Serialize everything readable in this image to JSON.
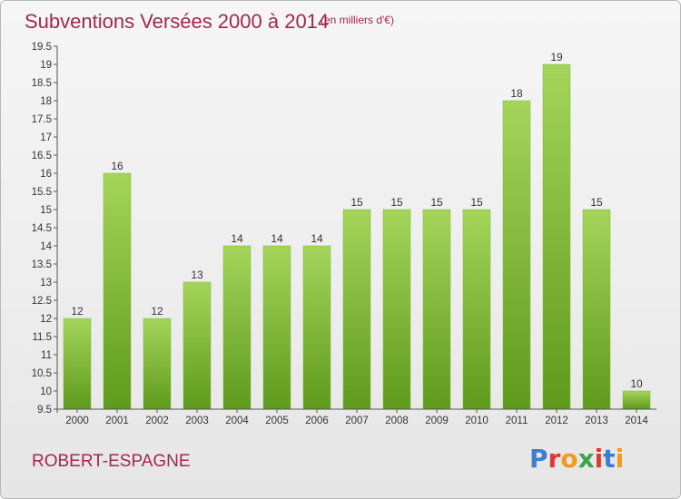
{
  "header": {
    "title": "Subventions Versées 2000 à 2014",
    "subtitle": "(en milliers d'€)"
  },
  "footer": {
    "commune": "ROBERT-ESPAGNE",
    "logo_text": "Proxiti",
    "logo_colors": [
      "#3a7fd0",
      "#e0392e",
      "#f29a1d",
      "#3aa54b",
      "#e0392e",
      "#3a7fd0",
      "#f29a1d"
    ]
  },
  "colors": {
    "bar_light": "#a4d55a",
    "bar_dark": "#5e9a1c",
    "axis": "#555555",
    "text": "#333333"
  },
  "chart_data": {
    "type": "bar",
    "title": "Subventions Versées 2000 à 2014",
    "subtitle": "(en milliers d'€)",
    "xlabel": "",
    "ylabel": "",
    "categories": [
      "2000",
      "2001",
      "2002",
      "2003",
      "2004",
      "2005",
      "2006",
      "2007",
      "2008",
      "2009",
      "2010",
      "2011",
      "2012",
      "2013",
      "2014"
    ],
    "values": [
      12,
      16,
      12,
      13,
      14,
      14,
      14,
      15,
      15,
      15,
      15,
      18,
      19,
      15,
      10
    ],
    "ylim": [
      9.5,
      19.5
    ],
    "yticks": [
      "9.5",
      "10",
      "10.5",
      "11",
      "11.5",
      "12",
      "12.5",
      "13",
      "13.5",
      "14",
      "14.5",
      "15",
      "15.5",
      "16",
      "16.5",
      "17",
      "17.5",
      "18",
      "18.5",
      "19",
      "19.5"
    ],
    "grid": false,
    "legend": "none"
  }
}
